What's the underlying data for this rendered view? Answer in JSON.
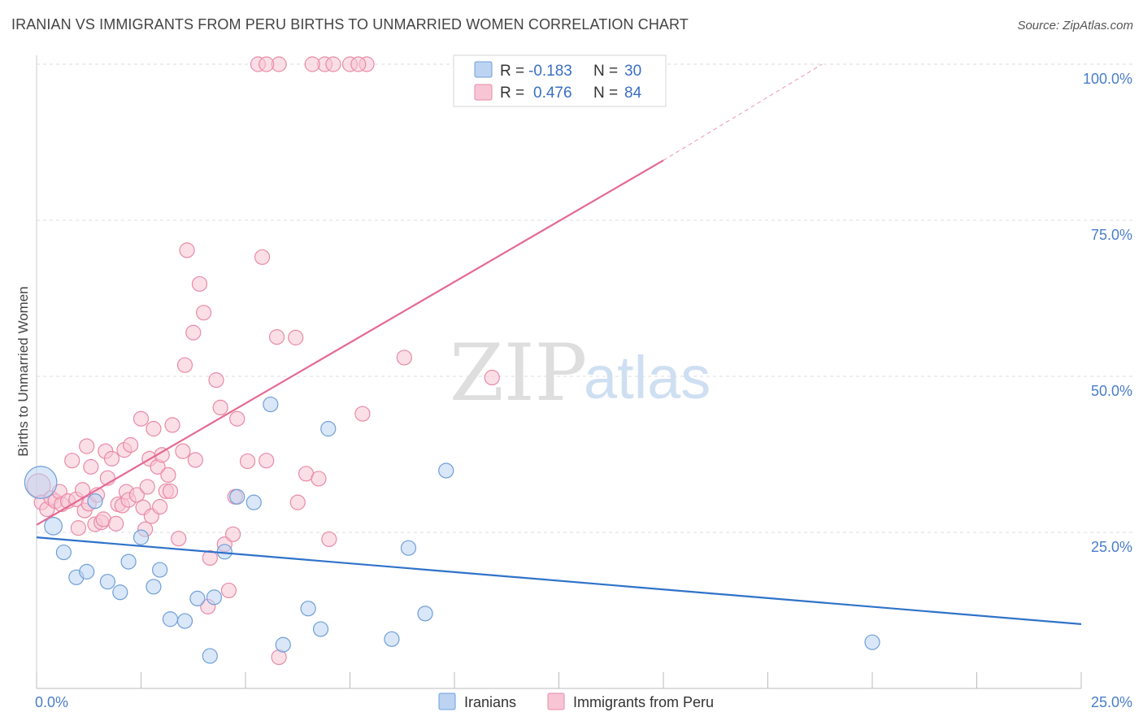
{
  "title": "IRANIAN VS IMMIGRANTS FROM PERU BIRTHS TO UNMARRIED WOMEN CORRELATION CHART",
  "source": "Source: ZipAtlas.com",
  "watermark": {
    "zip": "ZIP",
    "atlas": "atlas"
  },
  "legend": {
    "rows": [
      {
        "r_label": "R =",
        "r_value": "-0.183",
        "n_label": "N =",
        "n_value": "30"
      },
      {
        "r_label": "R =",
        "r_value": "0.476",
        "n_label": "N =",
        "n_value": "84"
      }
    ]
  },
  "bottom_legend": [
    "Iranians",
    "Immigrants from Peru"
  ],
  "colors": {
    "blue_fill": "#bcd3f2",
    "blue_stroke": "#6f9fd8",
    "blue_line": "#2f72c9",
    "pink_fill": "#f8c5d4",
    "pink_stroke": "#e88aa8",
    "pink_line": "#e46a93",
    "grid": "#dddddd",
    "tick_text": "#4a7ec9"
  },
  "chart_data": {
    "type": "scatter",
    "title": "IRANIAN VS IMMIGRANTS FROM PERU BIRTHS TO UNMARRIED WOMEN CORRELATION CHART",
    "ylabel": "Births to Unmarried Women",
    "xlabel": "",
    "xlim": [
      0,
      25
    ],
    "ylim": [
      0,
      100
    ],
    "x_tick_labels": [
      "0.0%",
      "25.0%"
    ],
    "y_tick_labels": [
      "25.0%",
      "50.0%",
      "75.0%",
      "100.0%"
    ],
    "y_ticks": [
      25,
      50,
      75,
      100
    ],
    "grid": true,
    "series": [
      {
        "name": "Iranians",
        "r": -0.183,
        "n": 30,
        "trend": {
          "x0": 0,
          "y0": 24.2,
          "x1": 25,
          "y1": 10.3
        },
        "points": [
          [
            0.1,
            33.0,
            2.2
          ],
          [
            0.4,
            26.0,
            1.2
          ],
          [
            0.65,
            21.8,
            1
          ],
          [
            0.95,
            17.8,
            1
          ],
          [
            1.2,
            18.7,
            1
          ],
          [
            1.4,
            30.0,
            1
          ],
          [
            1.7,
            17.1,
            1
          ],
          [
            2.0,
            15.4,
            1
          ],
          [
            2.2,
            20.3,
            1
          ],
          [
            2.5,
            24.2,
            1
          ],
          [
            2.8,
            16.3,
            1
          ],
          [
            2.95,
            19.0,
            1
          ],
          [
            3.2,
            11.1,
            1
          ],
          [
            3.55,
            10.8,
            1
          ],
          [
            3.85,
            14.4,
            1
          ],
          [
            4.15,
            5.2,
            1
          ],
          [
            4.25,
            14.6,
            1
          ],
          [
            4.5,
            21.9,
            1
          ],
          [
            4.8,
            30.7,
            1
          ],
          [
            5.2,
            29.8,
            1
          ],
          [
            5.6,
            45.5,
            1
          ],
          [
            5.9,
            7.0,
            1
          ],
          [
            6.5,
            12.8,
            1
          ],
          [
            6.8,
            9.5,
            1
          ],
          [
            6.98,
            41.6,
            1
          ],
          [
            8.5,
            7.9,
            1
          ],
          [
            8.9,
            22.5,
            1
          ],
          [
            9.3,
            12.0,
            1
          ],
          [
            9.8,
            34.9,
            1
          ],
          [
            20.0,
            7.4,
            1
          ]
        ]
      },
      {
        "name": "Immigrants from Peru",
        "r": 0.476,
        "n": 84,
        "trend": {
          "x0": 0,
          "y0": 26.2,
          "x1": 15.0,
          "y1": 84.6,
          "dash_x1": 18.8,
          "dash_y1": 100.0
        },
        "points": [
          [
            0.05,
            32.5,
            1.6
          ],
          [
            0.12,
            29.8,
            1
          ],
          [
            0.25,
            28.7,
            1
          ],
          [
            0.35,
            30.5,
            1
          ],
          [
            0.45,
            30.0,
            1
          ],
          [
            0.55,
            31.5,
            1
          ],
          [
            0.6,
            29.5,
            1
          ],
          [
            0.75,
            30.0,
            1
          ],
          [
            0.85,
            36.5,
            1
          ],
          [
            0.95,
            30.3,
            1
          ],
          [
            1.0,
            25.7,
            1
          ],
          [
            1.1,
            31.8,
            1
          ],
          [
            1.15,
            28.5,
            1
          ],
          [
            1.2,
            38.8,
            1
          ],
          [
            1.25,
            29.6,
            1
          ],
          [
            1.3,
            35.5,
            1
          ],
          [
            1.4,
            26.3,
            1
          ],
          [
            1.45,
            31.0,
            1
          ],
          [
            1.55,
            26.6,
            1
          ],
          [
            1.6,
            27.1,
            1
          ],
          [
            1.65,
            38.0,
            1
          ],
          [
            1.7,
            33.7,
            1
          ],
          [
            1.8,
            36.8,
            1
          ],
          [
            1.9,
            26.4,
            1
          ],
          [
            1.95,
            29.5,
            1
          ],
          [
            2.05,
            29.3,
            1
          ],
          [
            2.1,
            38.2,
            1
          ],
          [
            2.15,
            31.5,
            1
          ],
          [
            2.2,
            30.2,
            1
          ],
          [
            2.25,
            39.0,
            1
          ],
          [
            2.4,
            31.0,
            1
          ],
          [
            2.5,
            43.2,
            1
          ],
          [
            2.55,
            29.0,
            1
          ],
          [
            2.6,
            25.5,
            1
          ],
          [
            2.65,
            32.3,
            1
          ],
          [
            2.7,
            36.8,
            1
          ],
          [
            2.75,
            27.6,
            1
          ],
          [
            2.8,
            41.6,
            1
          ],
          [
            2.9,
            35.5,
            1
          ],
          [
            2.95,
            29.1,
            1
          ],
          [
            3.0,
            37.4,
            1
          ],
          [
            3.1,
            31.6,
            1
          ],
          [
            3.15,
            34.2,
            1
          ],
          [
            3.2,
            31.6,
            1
          ],
          [
            3.25,
            42.2,
            1
          ],
          [
            3.4,
            24.0,
            1
          ],
          [
            3.5,
            38.0,
            1
          ],
          [
            3.55,
            51.8,
            1
          ],
          [
            3.6,
            70.2,
            1
          ],
          [
            3.75,
            57.0,
            1
          ],
          [
            3.8,
            36.6,
            1
          ],
          [
            3.9,
            64.8,
            1
          ],
          [
            4.0,
            60.2,
            1
          ],
          [
            4.1,
            13.1,
            1
          ],
          [
            4.15,
            20.9,
            1
          ],
          [
            4.3,
            49.4,
            1
          ],
          [
            4.4,
            45.0,
            1
          ],
          [
            4.5,
            23.1,
            1
          ],
          [
            4.6,
            15.7,
            1
          ],
          [
            4.7,
            24.7,
            1
          ],
          [
            4.75,
            30.7,
            1
          ],
          [
            4.8,
            43.2,
            1
          ],
          [
            5.05,
            36.4,
            1
          ],
          [
            5.4,
            69.1,
            1
          ],
          [
            5.5,
            36.5,
            1
          ],
          [
            5.75,
            56.3,
            1
          ],
          [
            5.8,
            5.0,
            1
          ],
          [
            6.2,
            56.2,
            1
          ],
          [
            6.25,
            29.8,
            1
          ],
          [
            6.45,
            34.4,
            1
          ],
          [
            6.75,
            33.6,
            1
          ],
          [
            7.0,
            23.9,
            1
          ],
          [
            7.8,
            44.0,
            1
          ],
          [
            8.8,
            53.0,
            1
          ],
          [
            10.9,
            49.8,
            1
          ],
          [
            5.3,
            100.0,
            1
          ],
          [
            5.8,
            100.0,
            1
          ],
          [
            6.9,
            100.0,
            1
          ],
          [
            7.5,
            100.0,
            1
          ],
          [
            7.9,
            100.0,
            1
          ],
          [
            6.6,
            100.0,
            1
          ],
          [
            5.5,
            100.0,
            1
          ],
          [
            7.1,
            100.0,
            1
          ],
          [
            7.7,
            100.0,
            1
          ]
        ]
      }
    ]
  }
}
